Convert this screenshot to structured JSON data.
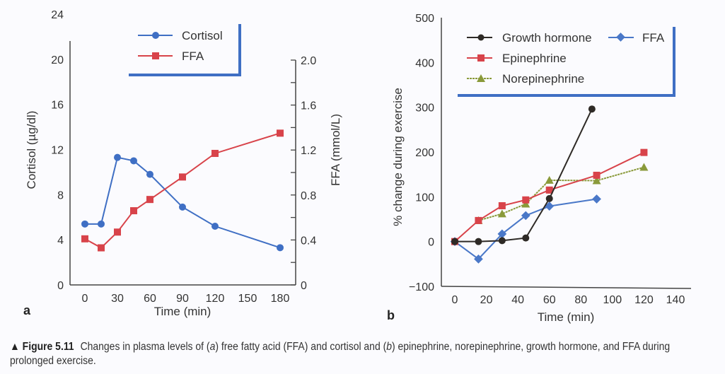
{
  "caption": {
    "figure_label": "▲ Figure 5.11",
    "text": "Changes in plasma levels of (a) free fatty acid (FFA) and cortisol and (b) epinephrine, norepinephrine, growth hormone, and FFA during prolonged exercise."
  },
  "colors": {
    "cortisol": "#3f6fc4",
    "ffa_a": "#d8434a",
    "growth_hormone": "#2e2a26",
    "epinephrine": "#d8434a",
    "norepinephrine": "#8a9a3a",
    "ffa_b": "#4a78c8",
    "legend_border": "#3f6fc4"
  },
  "chart_data": [
    {
      "panel": "a",
      "type": "line",
      "xlabel": "Time (min)",
      "ylabel": "Cortisol (µg/dl)",
      "y2label": "FFA (mmol/L)",
      "xlim": [
        0,
        180
      ],
      "xticks": [
        0,
        30,
        60,
        90,
        120,
        150,
        180
      ],
      "ylim": [
        0,
        24
      ],
      "yticks": [
        0,
        4,
        8,
        12,
        16,
        20,
        24
      ],
      "y2lim": [
        0,
        2.0
      ],
      "y2ticks": [
        "0",
        "0.4",
        "0.8",
        "1.2",
        "1.6",
        "2.0"
      ],
      "y2minor": [
        0.2,
        0.6,
        1.0,
        1.4,
        1.8
      ],
      "legend_position": "top-center",
      "series": [
        {
          "name": "Cortisol",
          "axis": "left",
          "marker": "circle",
          "x": [
            0,
            15,
            30,
            45,
            60,
            90,
            120,
            180
          ],
          "y": [
            5.4,
            5.4,
            11.3,
            11.0,
            9.8,
            6.9,
            5.2,
            3.3
          ]
        },
        {
          "name": "FFA",
          "axis": "right",
          "marker": "square",
          "x": [
            0,
            15,
            30,
            45,
            60,
            90,
            120,
            180
          ],
          "y": [
            0.41,
            0.33,
            0.47,
            0.66,
            0.76,
            0.96,
            1.17,
            1.35
          ]
        }
      ]
    },
    {
      "panel": "b",
      "type": "line",
      "xlabel": "Time (min)",
      "ylabel": "% change during exercise",
      "xlim": [
        0,
        140
      ],
      "xticks": [
        0,
        20,
        40,
        60,
        80,
        100,
        120,
        140
      ],
      "ylim": [
        -100,
        500
      ],
      "yticks": [
        -100,
        0,
        100,
        200,
        300,
        400,
        500
      ],
      "legend_position": "top-right",
      "series": [
        {
          "name": "Growth hormone",
          "marker": "circle",
          "x": [
            0,
            15,
            30,
            45,
            60,
            87
          ],
          "y": [
            0,
            0,
            2,
            8,
            96,
            296
          ]
        },
        {
          "name": "FFA",
          "marker": "diamond",
          "x": [
            0,
            15,
            30,
            45,
            60,
            90
          ],
          "y": [
            0,
            -39,
            17,
            58,
            79,
            95
          ]
        },
        {
          "name": "Epinephrine",
          "marker": "square",
          "x": [
            0,
            15,
            30,
            45,
            60,
            90,
            120
          ],
          "y": [
            0,
            47,
            80,
            93,
            115,
            148,
            199
          ]
        },
        {
          "name": "Norepinephrine",
          "marker": "triangle",
          "x": [
            15,
            30,
            45,
            60,
            90,
            120
          ],
          "y": [
            47,
            62,
            84,
            137,
            136,
            166
          ]
        }
      ]
    }
  ]
}
